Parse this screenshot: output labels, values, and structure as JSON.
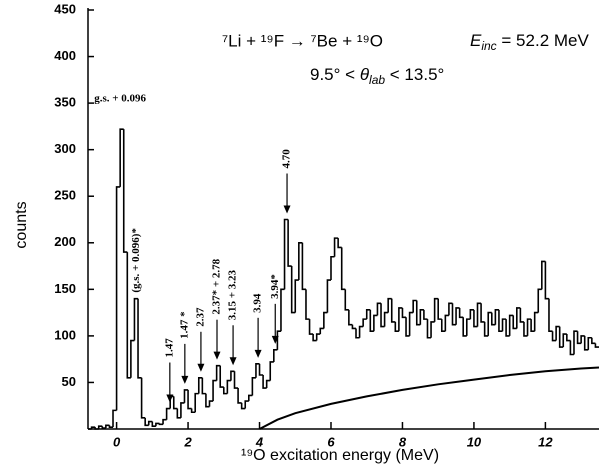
{
  "chart_data": {
    "type": "histogram",
    "title": "⁷Li + ¹⁹F → ⁷Be + ¹⁹O",
    "energy_label": [
      "E",
      "inc",
      " = 52.2 MeV"
    ],
    "angle_label": [
      "9.5° < ",
      "θ",
      "lab",
      " < 13.5°"
    ],
    "x_label": "¹⁹O excitation energy (MeV)",
    "y_label": "counts",
    "xlim": [
      -0.8,
      13.5
    ],
    "ylim": [
      0,
      450
    ],
    "xticks": [
      0,
      2,
      4,
      6,
      8,
      10,
      12
    ],
    "yticks": [
      50,
      100,
      150,
      200,
      250,
      300,
      350,
      400,
      450
    ],
    "color": "#000000",
    "bins": [
      -0.8,
      -0.7,
      -0.6,
      -0.5,
      -0.4,
      -0.3,
      -0.2,
      -0.1,
      0.0,
      0.1,
      0.2,
      0.3,
      0.4,
      0.5,
      0.6,
      0.7,
      0.8,
      0.9,
      1.0,
      1.1,
      1.2,
      1.3,
      1.4,
      1.5,
      1.6,
      1.7,
      1.8,
      1.9,
      2.0,
      2.1,
      2.2,
      2.3,
      2.4,
      2.5,
      2.6,
      2.7,
      2.8,
      2.9,
      3.0,
      3.1,
      3.2,
      3.3,
      3.4,
      3.5,
      3.6,
      3.7,
      3.8,
      3.9,
      4.0,
      4.1,
      4.2,
      4.3,
      4.4,
      4.5,
      4.6,
      4.7,
      4.8,
      4.9,
      5.0,
      5.1,
      5.2,
      5.3,
      5.4,
      5.5,
      5.6,
      5.7,
      5.8,
      5.9,
      6.0,
      6.1,
      6.2,
      6.3,
      6.4,
      6.5,
      6.6,
      6.7,
      6.8,
      6.9,
      7.0,
      7.1,
      7.2,
      7.3,
      7.4,
      7.5,
      7.6,
      7.7,
      7.8,
      7.9,
      8.0,
      8.1,
      8.2,
      8.3,
      8.4,
      8.5,
      8.6,
      8.7,
      8.8,
      8.9,
      9.0,
      9.1,
      9.2,
      9.3,
      9.4,
      9.5,
      9.6,
      9.7,
      9.8,
      9.9,
      10.0,
      10.1,
      10.2,
      10.3,
      10.4,
      10.5,
      10.6,
      10.7,
      10.8,
      10.9,
      11.0,
      11.1,
      11.2,
      11.3,
      11.4,
      11.5,
      11.6,
      11.7,
      11.8,
      11.9,
      12.0,
      12.1,
      12.2,
      12.3,
      12.4,
      12.5,
      12.6,
      12.7,
      12.8,
      12.9,
      13.0,
      13.1,
      13.2,
      13.3,
      13.4,
      13.5
    ],
    "values": [
      0,
      2,
      0,
      3,
      1,
      4,
      2,
      20,
      260,
      322,
      190,
      55,
      95,
      140,
      55,
      12,
      4,
      8,
      3,
      6,
      5,
      10,
      22,
      35,
      22,
      12,
      28,
      42,
      22,
      18,
      38,
      55,
      38,
      24,
      30,
      52,
      68,
      45,
      38,
      52,
      62,
      44,
      28,
      22,
      30,
      36,
      55,
      70,
      58,
      44,
      52,
      72,
      85,
      105,
      150,
      225,
      175,
      125,
      160,
      200,
      150,
      118,
      102,
      95,
      102,
      108,
      125,
      160,
      185,
      205,
      195,
      150,
      128,
      112,
      108,
      98,
      110,
      118,
      128,
      105,
      122,
      135,
      110,
      125,
      140,
      115,
      105,
      130,
      120,
      100,
      125,
      138,
      112,
      128,
      118,
      98,
      115,
      140,
      118,
      105,
      122,
      135,
      112,
      130,
      120,
      100,
      118,
      128,
      110,
      135,
      115,
      100,
      125,
      112,
      128,
      105,
      118,
      100,
      122,
      108,
      130,
      115,
      100,
      118,
      105,
      125,
      150,
      180,
      140,
      105,
      95,
      110,
      88,
      102,
      95,
      80,
      105,
      92,
      100,
      85,
      98,
      92,
      88
    ],
    "background": {
      "x": [
        4.0,
        4.5,
        5.0,
        6.0,
        7.0,
        8.0,
        9.0,
        10.0,
        11.0,
        12.0,
        13.0,
        13.5
      ],
      "values": [
        0,
        10,
        17,
        27,
        35,
        42,
        48,
        53,
        58,
        62,
        65,
        66
      ]
    },
    "annotations": [
      {
        "text": "g.s. + 0.096",
        "x": 0.1,
        "rotate": false,
        "arrow": false
      },
      {
        "text": "(g.s. + 0.096)*",
        "x": 0.55,
        "rotate": true,
        "arrow": false
      },
      {
        "text": "1.47",
        "x": 1.49,
        "rotate": true,
        "arrow": true
      },
      {
        "text": "1.47 *",
        "x": 1.91,
        "rotate": true,
        "arrow": true
      },
      {
        "text": "2.37",
        "x": 2.36,
        "rotate": true,
        "arrow": true
      },
      {
        "text": "2.37* + 2.78",
        "x": 2.81,
        "rotate": true,
        "arrow": true
      },
      {
        "text": "3.15 + 3.23",
        "x": 3.26,
        "rotate": true,
        "arrow": true
      },
      {
        "text": "3.94",
        "x": 3.96,
        "rotate": true,
        "arrow": true
      },
      {
        "text": "3.94*",
        "x": 4.44,
        "rotate": true,
        "arrow": true
      },
      {
        "text": "4.70",
        "x": 4.77,
        "rotate": true,
        "arrow": true
      }
    ]
  }
}
